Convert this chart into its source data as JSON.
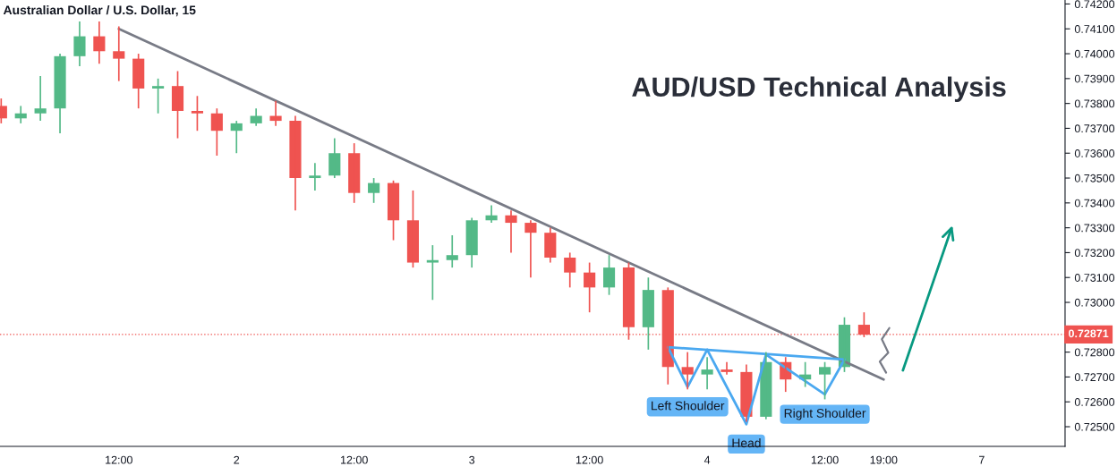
{
  "chart_data": {
    "type": "candlestick",
    "title": "AUD/USD Technical Analysis",
    "subtitle": "Australian Dollar / U.S. Dollar, 15",
    "categories": [
      null,
      null,
      null,
      null,
      null,
      null,
      "12:00",
      null,
      null,
      null,
      null,
      null,
      "2",
      null,
      null,
      null,
      null,
      null,
      "12:00",
      null,
      null,
      null,
      null,
      null,
      "3",
      null,
      null,
      null,
      null,
      null,
      "12:00",
      null,
      null,
      null,
      null,
      null,
      "4",
      null,
      null,
      null,
      null,
      null,
      "12:00",
      null,
      null,
      "19:00",
      null,
      null,
      null,
      null,
      "7",
      null,
      null,
      null,
      null
    ],
    "ohlc": [
      [
        0.7379,
        0.7382,
        0.7372,
        0.7374
      ],
      [
        0.7374,
        0.7379,
        0.7372,
        0.7376
      ],
      [
        0.7376,
        0.7391,
        0.7373,
        0.7378
      ],
      [
        0.7378,
        0.74,
        0.7368,
        0.7399
      ],
      [
        0.7399,
        0.7413,
        0.7395,
        0.7407
      ],
      [
        0.7407,
        0.7413,
        0.7396,
        0.7401
      ],
      [
        0.7401,
        0.7411,
        0.7389,
        0.7398
      ],
      [
        0.7398,
        0.74,
        0.7378,
        0.7386
      ],
      [
        0.7386,
        0.739,
        0.7376,
        0.7387
      ],
      [
        0.7387,
        0.7393,
        0.7366,
        0.7377
      ],
      [
        0.7377,
        0.7383,
        0.7369,
        0.7376
      ],
      [
        0.7376,
        0.7378,
        0.7359,
        0.7369
      ],
      [
        0.7369,
        0.7373,
        0.736,
        0.7372
      ],
      [
        0.7372,
        0.7378,
        0.7371,
        0.7375
      ],
      [
        0.7375,
        0.7381,
        0.7371,
        0.7373
      ],
      [
        0.7373,
        0.7375,
        0.7337,
        0.735
      ],
      [
        0.735,
        0.7356,
        0.7345,
        0.7351
      ],
      [
        0.7351,
        0.7366,
        0.735,
        0.736
      ],
      [
        0.736,
        0.7364,
        0.734,
        0.7344
      ],
      [
        0.7344,
        0.735,
        0.734,
        0.7348
      ],
      [
        0.7348,
        0.7349,
        0.7325,
        0.7333
      ],
      [
        0.7333,
        0.7345,
        0.7314,
        0.7316
      ],
      [
        0.7316,
        0.7323,
        0.7301,
        0.7317
      ],
      [
        0.7317,
        0.7327,
        0.7314,
        0.7319
      ],
      [
        0.7319,
        0.7334,
        0.7314,
        0.7333
      ],
      [
        0.7333,
        0.7339,
        0.7332,
        0.7335
      ],
      [
        0.7335,
        0.7337,
        0.732,
        0.7332
      ],
      [
        0.7332,
        0.7333,
        0.731,
        0.7328
      ],
      [
        0.7328,
        0.733,
        0.7316,
        0.7318
      ],
      [
        0.7318,
        0.732,
        0.7306,
        0.7312
      ],
      [
        0.7312,
        0.7316,
        0.7296,
        0.7306
      ],
      [
        0.7306,
        0.7319,
        0.7303,
        0.7314
      ],
      [
        0.7314,
        0.7316,
        0.7285,
        0.729
      ],
      [
        0.729,
        0.731,
        0.7281,
        0.7305
      ],
      [
        0.7305,
        0.7306,
        0.7267,
        0.7274
      ],
      [
        0.7274,
        0.728,
        0.7265,
        0.7271
      ],
      [
        0.7271,
        0.7278,
        0.7265,
        0.7273
      ],
      [
        0.7273,
        0.7276,
        0.7271,
        0.7272
      ],
      [
        0.7272,
        0.7275,
        0.7252,
        0.7254
      ],
      [
        0.7254,
        0.728,
        0.7253,
        0.7276
      ],
      [
        0.7276,
        0.7278,
        0.7264,
        0.7269
      ],
      [
        0.7269,
        0.7276,
        0.7266,
        0.7271
      ],
      [
        0.7271,
        0.7276,
        0.7261,
        0.7274
      ],
      [
        0.7274,
        0.7294,
        0.7272,
        0.7291
      ],
      [
        0.7291,
        0.7296,
        0.7286,
        0.7287
      ],
      null,
      null,
      null,
      null,
      null,
      null,
      null,
      null,
      null,
      null
    ],
    "colors": [
      "#ef5350",
      "#53b987",
      "#53b987",
      "#53b987",
      "#53b987",
      "#ef5350",
      "#ef5350",
      "#ef5350",
      "#53b987",
      "#ef5350",
      "#ef5350",
      "#ef5350",
      "#53b987",
      "#53b987",
      "#ef5350",
      "#ef5350",
      "#53b987",
      "#53b987",
      "#ef5350",
      "#53b987",
      "#ef5350",
      "#ef5350",
      "#53b987",
      "#53b987",
      "#53b987",
      "#53b987",
      "#ef5350",
      "#ef5350",
      "#ef5350",
      "#ef5350",
      "#ef5350",
      "#53b987",
      "#ef5350",
      "#53b987",
      "#ef5350",
      "#ef5350",
      "#53b987",
      "#ef5350",
      "#ef5350",
      "#53b987",
      "#ef5350",
      "#53b987",
      "#53b987",
      "#53b987",
      "#ef5350",
      null,
      null,
      null,
      null,
      null,
      null,
      null,
      null,
      null,
      null
    ],
    "series": [
      {
        "type": "line",
        "color": "#787b86",
        "values": [
          null,
          null,
          null,
          null,
          null,
          null,
          0.741,
          null,
          null,
          null,
          null,
          null,
          null,
          null,
          null,
          null,
          null,
          null,
          null,
          null,
          null,
          null,
          null,
          null,
          null,
          null,
          null,
          null,
          null,
          null,
          null,
          null,
          null,
          null,
          null,
          null,
          null,
          null,
          null,
          null,
          null,
          null,
          null,
          null,
          null,
          0.7269,
          null,
          null,
          null,
          null,
          null,
          null,
          null,
          null,
          null
        ]
      },
      {
        "type": "line",
        "color": "#4aa8f0",
        "values": [
          null,
          null,
          null,
          null,
          null,
          null,
          null,
          null,
          null,
          null,
          null,
          null,
          null,
          null,
          null,
          null,
          null,
          null,
          null,
          null,
          null,
          null,
          null,
          null,
          null,
          null,
          null,
          null,
          null,
          null,
          null,
          null,
          null,
          null,
          0.7282,
          0.7266,
          0.7281,
          null,
          0.7251,
          0.7279,
          null,
          null,
          0.7263,
          0.7277,
          null,
          null,
          null,
          null,
          null,
          null,
          null,
          null,
          null,
          null,
          null
        ]
      },
      {
        "type": "line",
        "color": "#4aa8f0",
        "values": [
          null,
          null,
          null,
          null,
          null,
          null,
          null,
          null,
          null,
          null,
          null,
          null,
          null,
          null,
          null,
          null,
          null,
          null,
          null,
          null,
          null,
          null,
          null,
          null,
          null,
          null,
          null,
          null,
          null,
          null,
          null,
          null,
          null,
          null,
          0.7282,
          null,
          null,
          null,
          null,
          null,
          null,
          null,
          null,
          0.7277,
          null,
          null,
          null,
          null,
          null,
          null,
          null,
          null,
          null,
          null,
          null
        ]
      }
    ],
    "annotations": [
      "Left Shoulder",
      "Head",
      "Right Shoulder"
    ],
    "ref_lines": [
      {
        "axis": "y",
        "value": 0.72871,
        "label": "0.72871",
        "color": "#ef5350",
        "line_style": "dotted"
      }
    ],
    "ylim": [
      0.72421,
      0.74216
    ],
    "yticks": [
      {
        "value": 0.725,
        "label": "0.72500"
      },
      {
        "value": 0.726,
        "label": "0.72600"
      },
      {
        "value": 0.727,
        "label": "0.72700"
      },
      {
        "value": 0.728,
        "label": "0.72800"
      },
      {
        "value": 0.729,
        "label": null
      },
      {
        "value": 0.73,
        "label": "0.73000"
      },
      {
        "value": 0.731,
        "label": "0.73100"
      },
      {
        "value": 0.732,
        "label": "0.73200"
      },
      {
        "value": 0.733,
        "label": "0.73300"
      },
      {
        "value": 0.734,
        "label": "0.73400"
      },
      {
        "value": 0.735,
        "label": "0.73500"
      },
      {
        "value": 0.736,
        "label": "0.73600"
      },
      {
        "value": 0.737,
        "label": "0.73700"
      },
      {
        "value": 0.738,
        "label": "0.73800"
      },
      {
        "value": 0.739,
        "label": "0.73900"
      },
      {
        "value": 0.74,
        "label": "0.74000"
      },
      {
        "value": 0.741,
        "label": "0.74100"
      },
      {
        "value": 0.742,
        "label": "0.74200"
      }
    ],
    "grid": false
  }
}
